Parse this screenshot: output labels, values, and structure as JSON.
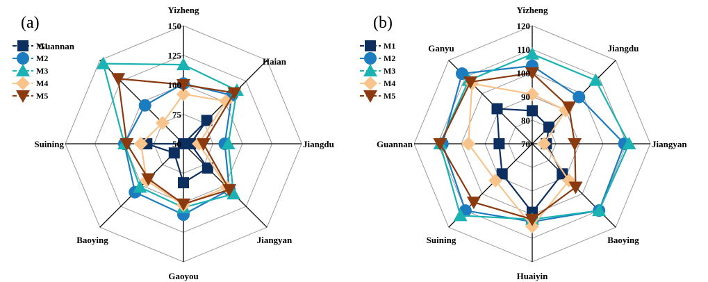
{
  "chart_data": [
    {
      "type": "radar",
      "panel_label": "(a)",
      "categories": [
        "Yizheng",
        "Haian",
        "Jiangdu",
        "Jiangyan",
        "Gaoyou",
        "Baoying",
        "Suining",
        "Guannan"
      ],
      "rlim": [
        50,
        150
      ],
      "ticks": [
        "50",
        "75",
        "100",
        "125",
        "150"
      ],
      "grid": true,
      "legend": "top-left",
      "series": [
        {
          "name": "M1",
          "color": "#0d2f5f",
          "marker": "square",
          "values": [
            50,
            78,
            56,
            79,
            83,
            61,
            81,
            50
          ]
        },
        {
          "name": "M2",
          "color": "#1c7cbf",
          "marker": "circle",
          "values": [
            101,
            108,
            85,
            105,
            110,
            108,
            100,
            96
          ]
        },
        {
          "name": "M3",
          "color": "#1ab2b2",
          "marker": "triangle-up",
          "values": [
            117,
            114,
            88,
            110,
            104,
            102,
            100,
            146
          ]
        },
        {
          "name": "M4",
          "color": "#f9c48c",
          "marker": "diamond",
          "values": [
            92,
            101,
            63,
            102,
            102,
            94,
            86,
            75
          ]
        },
        {
          "name": "M5",
          "color": "#8b3a0f",
          "marker": "triangle-down",
          "values": [
            100,
            111,
            67,
            105,
            101,
            92,
            98,
            128
          ]
        }
      ]
    },
    {
      "type": "radar",
      "panel_label": "(b)",
      "categories": [
        "Yizheng",
        "Jiangdu",
        "Jiangyan",
        "Baoying",
        "Huaiyin",
        "Suining",
        "Guannan",
        "Ganyu"
      ],
      "rlim": [
        70,
        120
      ],
      "ticks": [
        "70",
        "80",
        "90",
        "100",
        "110",
        "120"
      ],
      "grid": true,
      "legend": "top-left",
      "series": [
        {
          "name": "M1",
          "color": "#0d2f5f",
          "marker": "square",
          "values": [
            84,
            80,
            76,
            88,
            99,
            88,
            84,
            91
          ]
        },
        {
          "name": "M2",
          "color": "#1c7cbf",
          "marker": "circle",
          "values": [
            103,
            98,
            109,
            110,
            103,
            110,
            108,
            112
          ]
        },
        {
          "name": "M3",
          "color": "#1ab2b2",
          "marker": "triangle-up",
          "values": [
            108,
            108,
            111,
            110,
            102,
            113,
            109,
            108
          ]
        },
        {
          "name": "M4",
          "color": "#f9c48c",
          "marker": "diamond",
          "values": [
            91,
            90,
            75,
            92,
            105,
            92,
            97,
            106
          ]
        },
        {
          "name": "M5",
          "color": "#8b3a0f",
          "marker": "triangle-down",
          "values": [
            100,
            92,
            88,
            96,
            102,
            105,
            109,
            107
          ]
        }
      ]
    }
  ]
}
